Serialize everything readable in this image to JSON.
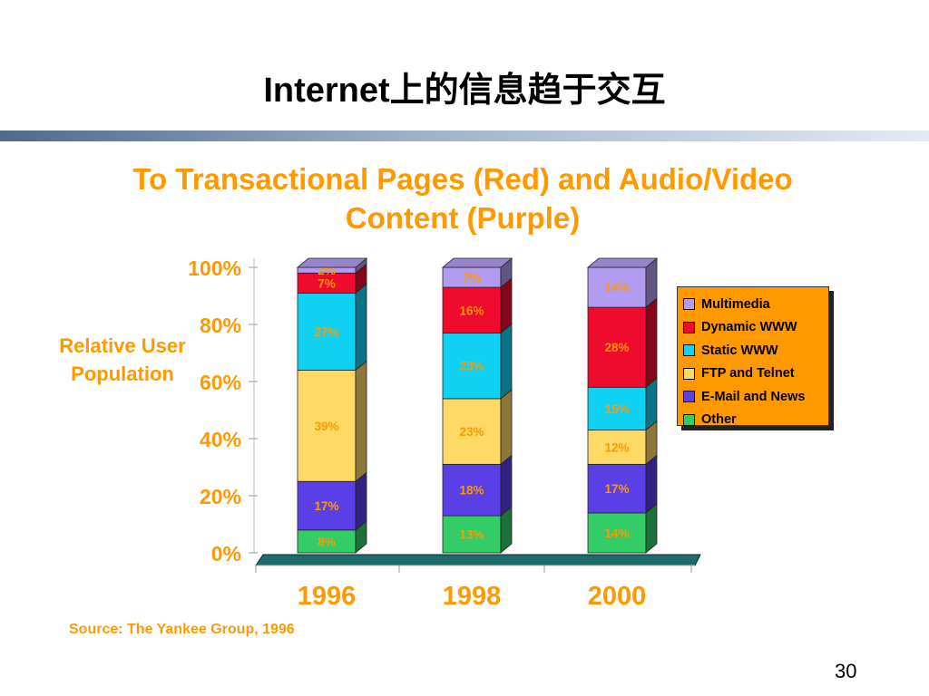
{
  "slide": {
    "title": "Internet上的信息趋于交互",
    "page_number": "30",
    "source": "Source: The Yankee Group, 1996"
  },
  "chart_data": {
    "type": "bar",
    "stacked": true,
    "title": "To Transactional Pages (Red) and Audio/Video Content (Purple)",
    "ylabel": "Relative User Population",
    "xlabel": "",
    "categories": [
      "1996",
      "1998",
      "2000"
    ],
    "y_ticks": [
      "0%",
      "20%",
      "40%",
      "60%",
      "80%",
      "100%"
    ],
    "ylim": [
      0,
      100
    ],
    "legend_position": "right",
    "series": [
      {
        "name": "Other",
        "color": "#33cc66",
        "values": [
          8,
          13,
          14
        ],
        "labels": [
          "8%",
          "13%",
          "14%"
        ]
      },
      {
        "name": "E-Mail and News",
        "color": "#5a3ee6",
        "values": [
          17,
          18,
          17
        ],
        "labels": [
          "17%",
          "18%",
          "17%"
        ]
      },
      {
        "name": "FTP and Telnet",
        "color": "#ffd966",
        "values": [
          39,
          23,
          12
        ],
        "labels": [
          "39%",
          "23%",
          "12%"
        ]
      },
      {
        "name": "Static WWW",
        "color": "#0fd2f2",
        "values": [
          27,
          23,
          15
        ],
        "labels": [
          "27%",
          "23%",
          "15%"
        ]
      },
      {
        "name": "Dynamic WWW",
        "color": "#ee0b2d",
        "values": [
          7,
          16,
          28
        ],
        "labels": [
          "7%",
          "16%",
          "28%"
        ]
      },
      {
        "name": "Multimedia",
        "color": "#b39bf0",
        "values": [
          2,
          7,
          14
        ],
        "labels": [
          "2%",
          "7%",
          "14%"
        ]
      }
    ]
  }
}
